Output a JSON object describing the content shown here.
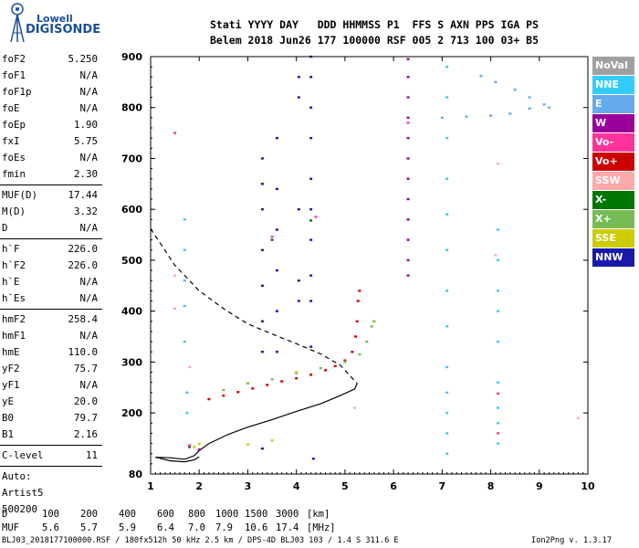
{
  "logo": {
    "line1": "Lowell",
    "line2": "DIGISONDE"
  },
  "header": {
    "line1": "Stati YYYY DAY   DDD HHMMSS P1  FFS S AXN PPS IGA PS",
    "line2": "Belem 2018 Jun26 177 100000 RSF 005 2 713 100 03+ B5"
  },
  "params": [
    {
      "label": "foF2",
      "value": "5.250"
    },
    {
      "label": "foF1",
      "value": "N/A"
    },
    {
      "label": "foF1p",
      "value": "N/A"
    },
    {
      "label": "foE",
      "value": "N/A"
    },
    {
      "label": "foEp",
      "value": "1.90"
    },
    {
      "label": "fxI",
      "value": "5.75"
    },
    {
      "label": "foEs",
      "value": "N/A"
    },
    {
      "label": "fmin",
      "value": "2.30"
    },
    {
      "label": "MUF(D)",
      "value": "17.44"
    },
    {
      "label": "M(D)",
      "value": "3.32"
    },
    {
      "label": "D",
      "value": "N/A"
    },
    {
      "label": "h`F",
      "value": "226.0"
    },
    {
      "label": "h`F2",
      "value": "226.0"
    },
    {
      "label": "h`E",
      "value": "N/A"
    },
    {
      "label": "h`Es",
      "value": "N/A"
    },
    {
      "label": "hmF2",
      "value": "258.4"
    },
    {
      "label": "hmF1",
      "value": "N/A"
    },
    {
      "label": "hmE",
      "value": "110.0"
    },
    {
      "label": "yF2",
      "value": "75.7"
    },
    {
      "label": "yF1",
      "value": "N/A"
    },
    {
      "label": "yE",
      "value": "20.0"
    },
    {
      "label": "B0",
      "value": "79.7"
    },
    {
      "label": "B1",
      "value": "2.16"
    },
    {
      "label": "C-level",
      "value": "11"
    },
    {
      "label": "Auto:",
      "value": ""
    },
    {
      "label": "Artist5",
      "value": ""
    },
    {
      "label": "500200",
      "value": ""
    }
  ],
  "legend": [
    {
      "label": "NoVal",
      "color": "#a0a0a0"
    },
    {
      "label": "NNE",
      "color": "#33ccff"
    },
    {
      "label": "E",
      "color": "#66aaee"
    },
    {
      "label": "W",
      "color": "#990099"
    },
    {
      "label": "Vo-",
      "color": "#ff3399"
    },
    {
      "label": "Vo+",
      "color": "#cc0000"
    },
    {
      "label": "SSW",
      "color": "#ffaaaa"
    },
    {
      "label": "X-",
      "color": "#007700"
    },
    {
      "label": "X+",
      "color": "#77bb55"
    },
    {
      "label": "SSE",
      "color": "#cccc00"
    },
    {
      "label": "NNW",
      "color": "#1a1aaa"
    }
  ],
  "footer": {
    "d_label": "D",
    "d_values": [
      "100",
      "200",
      "400",
      "600",
      "800",
      "1000",
      "1500",
      "3000",
      "[km]"
    ],
    "muf_label": "MUF",
    "muf_values": [
      "5.6",
      "5.7",
      "5.9",
      "6.4",
      "7.0",
      "7.9",
      "10.6",
      "17.4",
      "[MHz]"
    ],
    "file_info": "BLJ03_2018177100000.RSF / 180fx512h 50 kHz 2.5 km / DPS-4D BLJ03 103 / 1.4 S 311.6 E",
    "version": "Ion2Png v. 1.3.17"
  },
  "chart_data": {
    "type": "scatter",
    "title": "",
    "xlabel": "",
    "ylabel": "",
    "xlim": [
      1,
      10
    ],
    "ylim": [
      80,
      900
    ],
    "x_ticks": [
      1,
      2,
      3,
      4,
      5,
      6,
      7,
      8,
      9,
      10
    ],
    "y_ticks": [
      80,
      200,
      300,
      400,
      500,
      600,
      700,
      800,
      900
    ],
    "curves": [
      {
        "name": "virtual-height-trace",
        "style": "solid",
        "color": "#000000",
        "points": [
          [
            1.1,
            113
          ],
          [
            1.4,
            112
          ],
          [
            1.7,
            109
          ],
          [
            1.9,
            116
          ],
          [
            2.0,
            126
          ],
          [
            2.2,
            140
          ],
          [
            2.6,
            158
          ],
          [
            3.0,
            172
          ],
          [
            3.5,
            187
          ],
          [
            4.0,
            203
          ],
          [
            4.5,
            218
          ],
          [
            4.9,
            234
          ],
          [
            5.2,
            247
          ],
          [
            5.25,
            258
          ]
        ]
      },
      {
        "name": "trace-loop",
        "style": "solid",
        "color": "#000000",
        "points": [
          [
            1.1,
            113
          ],
          [
            1.4,
            106
          ],
          [
            1.7,
            104
          ],
          [
            1.9,
            108
          ],
          [
            2.0,
            114
          ]
        ]
      },
      {
        "name": "profile",
        "style": "dashed",
        "color": "#000000",
        "points": [
          [
            1.0,
            562
          ],
          [
            1.5,
            490
          ],
          [
            2.0,
            440
          ],
          [
            2.5,
            405
          ],
          [
            3.0,
            375
          ],
          [
            3.5,
            355
          ],
          [
            4.0,
            336
          ],
          [
            4.5,
            316
          ],
          [
            4.9,
            294
          ],
          [
            5.25,
            258
          ]
        ]
      }
    ],
    "echo_traces": [
      {
        "name": "Vo+",
        "color": "#cc0000",
        "points": [
          [
            2.2,
            227
          ],
          [
            2.5,
            234
          ],
          [
            2.8,
            241
          ],
          [
            3.1,
            248
          ],
          [
            3.4,
            255
          ],
          [
            3.7,
            262
          ],
          [
            4.0,
            268
          ],
          [
            4.3,
            275
          ],
          [
            4.6,
            284
          ],
          [
            4.8,
            292
          ],
          [
            5.0,
            303
          ],
          [
            5.15,
            320
          ],
          [
            5.22,
            350
          ],
          [
            5.25,
            380
          ],
          [
            5.27,
            420
          ],
          [
            5.3,
            440
          ]
        ]
      },
      {
        "name": "X+",
        "color": "#77bb55",
        "points": [
          [
            2.5,
            245
          ],
          [
            3.0,
            258
          ],
          [
            3.5,
            266
          ],
          [
            4.0,
            278
          ],
          [
            4.5,
            288
          ],
          [
            5.0,
            300
          ],
          [
            5.3,
            315
          ],
          [
            5.45,
            340
          ],
          [
            5.55,
            370
          ],
          [
            5.6,
            380
          ]
        ]
      },
      {
        "name": "W",
        "color": "#990099",
        "points": [
          [
            6.3,
            895
          ],
          [
            6.3,
            860
          ],
          [
            6.3,
            820
          ],
          [
            6.3,
            780
          ],
          [
            6.3,
            740
          ],
          [
            6.3,
            700
          ],
          [
            6.3,
            660
          ],
          [
            6.3,
            620
          ],
          [
            6.3,
            580
          ],
          [
            6.3,
            540
          ],
          [
            6.3,
            500
          ],
          [
            6.3,
            470
          ],
          [
            2.0,
            128
          ]
        ]
      },
      {
        "name": "E",
        "color": "#66aaee",
        "points": [
          [
            7.0,
            780
          ],
          [
            7.5,
            782
          ],
          [
            8.0,
            784
          ],
          [
            8.4,
            788
          ],
          [
            8.8,
            798
          ],
          [
            9.1,
            806
          ],
          [
            8.8,
            820
          ],
          [
            8.5,
            835
          ],
          [
            8.1,
            850
          ],
          [
            7.8,
            862
          ],
          [
            9.2,
            800
          ]
        ]
      },
      {
        "name": "NNW",
        "color": "#1a1aaa",
        "points": [
          [
            3.3,
            700
          ],
          [
            3.3,
            650
          ],
          [
            3.3,
            600
          ],
          [
            3.3,
            520
          ],
          [
            3.3,
            450
          ],
          [
            3.3,
            380
          ],
          [
            3.3,
            320
          ],
          [
            3.6,
            740
          ],
          [
            3.6,
            640
          ],
          [
            3.6,
            560
          ],
          [
            3.6,
            480
          ],
          [
            3.6,
            400
          ],
          [
            3.6,
            320
          ],
          [
            4.3,
            900
          ],
          [
            4.3,
            860
          ],
          [
            4.3,
            800
          ],
          [
            4.3,
            740
          ],
          [
            4.3,
            660
          ],
          [
            4.3,
            600
          ],
          [
            4.3,
            540
          ],
          [
            4.3,
            470
          ],
          [
            4.3,
            420
          ],
          [
            4.3,
            330
          ],
          [
            4.05,
            860
          ],
          [
            4.05,
            820
          ],
          [
            4.05,
            600
          ],
          [
            4.05,
            460
          ],
          [
            4.05,
            420
          ],
          [
            3.3,
            130
          ],
          [
            4.35,
            110
          ]
        ]
      },
      {
        "name": "NNE",
        "color": "#33ccff",
        "points": [
          [
            7.1,
            880
          ],
          [
            7.1,
            820
          ],
          [
            7.1,
            740
          ],
          [
            7.1,
            660
          ],
          [
            7.1,
            590
          ],
          [
            7.1,
            520
          ],
          [
            7.1,
            440
          ],
          [
            7.1,
            370
          ],
          [
            7.1,
            290
          ],
          [
            7.1,
            240
          ],
          [
            7.1,
            200
          ],
          [
            7.1,
            160
          ],
          [
            7.1,
            120
          ],
          [
            8.15,
            560
          ],
          [
            8.15,
            500
          ],
          [
            8.15,
            440
          ],
          [
            8.15,
            400
          ],
          [
            8.15,
            340
          ],
          [
            8.15,
            260
          ],
          [
            8.15,
            210
          ],
          [
            8.15,
            180
          ],
          [
            8.15,
            140
          ],
          [
            1.7,
            580
          ],
          [
            1.7,
            520
          ],
          [
            1.7,
            460
          ],
          [
            1.7,
            410
          ],
          [
            1.7,
            340
          ],
          [
            1.75,
            240
          ],
          [
            1.75,
            200
          ]
        ]
      },
      {
        "name": "SSE",
        "color": "#cccc00",
        "points": [
          [
            1.9,
            133
          ],
          [
            2.0,
            139
          ],
          [
            3.0,
            138
          ],
          [
            3.5,
            146
          ],
          [
            4.0,
            280
          ]
        ]
      },
      {
        "name": "X-",
        "color": "#007700",
        "points": [
          [
            1.8,
            133
          ],
          [
            3.5,
            540
          ],
          [
            4.3,
            578
          ]
        ]
      },
      {
        "name": "Vo-",
        "color": "#ff3399",
        "points": [
          [
            1.8,
            136
          ],
          [
            3.5,
            546
          ],
          [
            4.4,
            585
          ],
          [
            6.3,
            770
          ],
          [
            8.15,
            238
          ],
          [
            8.15,
            160
          ],
          [
            1.5,
            750
          ]
        ]
      },
      {
        "name": "SSW",
        "color": "#ffaaaa",
        "points": [
          [
            1.5,
            405
          ],
          [
            1.5,
            470
          ],
          [
            1.8,
            290
          ],
          [
            8.15,
            690
          ],
          [
            8.1,
            510
          ],
          [
            5.2,
            210
          ],
          [
            9.8,
            190
          ]
        ]
      }
    ]
  }
}
